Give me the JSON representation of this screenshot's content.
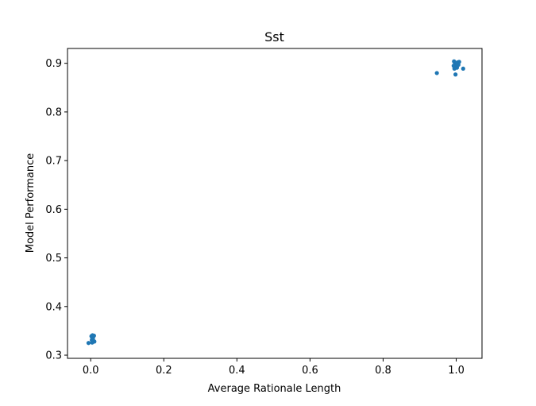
{
  "chart_data": {
    "type": "scatter",
    "title": "Sst",
    "xlabel": "Average Rationale Length",
    "ylabel": "Model Performance",
    "xlim": [
      -0.0635,
      1.0705
    ],
    "ylim": [
      0.2935,
      0.9305
    ],
    "xticks": [
      0.0,
      0.2,
      0.4,
      0.6,
      0.8,
      1.0
    ],
    "xtick_labels": [
      "0.0",
      "0.2",
      "0.4",
      "0.6",
      "0.8",
      "1.0"
    ],
    "yticks": [
      0.3,
      0.4,
      0.5,
      0.6,
      0.7,
      0.8,
      0.9
    ],
    "ytick_labels": [
      "0.3",
      "0.4",
      "0.5",
      "0.6",
      "0.7",
      "0.8",
      "0.9"
    ],
    "grid": false,
    "marker_color": "#1f77b4",
    "series": [
      {
        "points": [
          {
            "x": 0.002,
            "y": 0.339
          },
          {
            "x": 0.005,
            "y": 0.341
          },
          {
            "x": 0.007,
            "y": 0.338
          },
          {
            "x": 0.004,
            "y": 0.336
          },
          {
            "x": 0.009,
            "y": 0.34
          },
          {
            "x": 0.006,
            "y": 0.333
          },
          {
            "x": 0.008,
            "y": 0.329
          },
          {
            "x": -0.006,
            "y": 0.325
          },
          {
            "x": 0.004,
            "y": 0.326
          },
          {
            "x": 0.01,
            "y": 0.328
          },
          {
            "x": 0.003,
            "y": 0.331
          },
          {
            "x": 0.994,
            "y": 0.904
          },
          {
            "x": 0.997,
            "y": 0.9
          },
          {
            "x": 1.0,
            "y": 0.899
          },
          {
            "x": 1.004,
            "y": 0.902
          },
          {
            "x": 1.008,
            "y": 0.903
          },
          {
            "x": 0.996,
            "y": 0.896
          },
          {
            "x": 0.999,
            "y": 0.893
          },
          {
            "x": 1.002,
            "y": 0.891
          },
          {
            "x": 0.993,
            "y": 0.895
          },
          {
            "x": 1.006,
            "y": 0.897
          },
          {
            "x": 1.019,
            "y": 0.889
          },
          {
            "x": 0.947,
            "y": 0.88
          },
          {
            "x": 0.998,
            "y": 0.877
          },
          {
            "x": 0.995,
            "y": 0.889
          }
        ]
      }
    ]
  }
}
